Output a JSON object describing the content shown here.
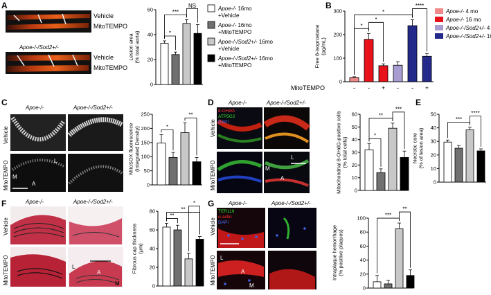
{
  "panels": [
    "A",
    "B",
    "C",
    "D",
    "E",
    "F",
    "G"
  ],
  "genotypes": {
    "apoe": "Apoe-/-",
    "apoe_sod2": "Apoe-/-/Sod2+/-"
  },
  "treatments": {
    "vehicle": "Vehicle",
    "mito": "MitoTEMPO"
  },
  "markers": {
    "M": "M",
    "L": "L",
    "A": "A",
    "d_stains": [
      "8-OHdG",
      "ATP5G2",
      "DAPI"
    ],
    "g_stains": [
      "TER119",
      "α-actin",
      "DAPI"
    ]
  },
  "colors": {
    "white": "#ffffff",
    "dark_gray": "#707070",
    "light_gray": "#c8c8c8",
    "black": "#000000",
    "b_apoe_4": "#f08a8a",
    "b_apoe_16": "#e8121b",
    "b_sod2_4": "#a89cd0",
    "b_sod2_16": "#242a8a"
  },
  "legend_a": [
    {
      "genotype": "Apoe-/-",
      "suffix": " 16mo",
      "treatment": "+Vehicle",
      "fill": "#ffffff"
    },
    {
      "genotype": "Apoe-/-",
      "suffix": " 16mo",
      "treatment": "+MitoTEMPO",
      "fill": "#707070"
    },
    {
      "genotype": "Apoe-/-/Sod2+/-",
      "suffix": " 16mo",
      "treatment": "+Vehicle",
      "fill": "#c8c8c8"
    },
    {
      "genotype": "Apoe-/-/Sod2+/-",
      "suffix": " 16mo",
      "treatment": "+MitoTEMPO",
      "fill": "#000000"
    }
  ],
  "legend_b": [
    {
      "genotype": "Apoe-/-",
      "age": " 4 mo",
      "fill": "#f08a8a"
    },
    {
      "genotype": "Apoe-/-",
      "age": " 16 mo",
      "fill": "#e8121b"
    },
    {
      "genotype": "Apoe-/-/Sod2+/-",
      "age": " 4 mo",
      "fill": "#a89cd0"
    },
    {
      "genotype": "Apoe-/-/Sod2+/-",
      "age": " 16 mo",
      "fill": "#242a8a"
    }
  ],
  "chart_data": [
    {
      "panel": "A",
      "type": "bar",
      "ylabel": "Lesion area (% total aorta)",
      "ylim": [
        0,
        60
      ],
      "yticks": [
        0,
        20,
        40,
        60
      ],
      "values": [
        33,
        24,
        49,
        41
      ],
      "errors": [
        2,
        2,
        3,
        7
      ],
      "significance": [
        {
          "pair": [
            0,
            1
          ],
          "label": "*"
        },
        {
          "pair": [
            0,
            2
          ],
          "label": "***"
        },
        {
          "pair": [
            2,
            3
          ],
          "label": "NS"
        }
      ]
    },
    {
      "panel": "B",
      "type": "bar",
      "ylabel": "Free 8-isoprostane (pg/mL)",
      "ylim": [
        0,
        300
      ],
      "yticks": [
        0,
        100,
        200,
        300
      ],
      "values": [
        18,
        180,
        68,
        70,
        238,
        108
      ],
      "errors": [
        3,
        25,
        8,
        15,
        25,
        12
      ],
      "xlabel": "MitoTEMPO",
      "xticks": [
        "-",
        "-",
        "+",
        "-",
        "-",
        "+"
      ],
      "significance": [
        {
          "pair": [
            0,
            1
          ],
          "label": "*"
        },
        {
          "pair": [
            1,
            2
          ],
          "label": "*"
        },
        {
          "pair": [
            0,
            4
          ],
          "label": "*"
        },
        {
          "pair": [
            4,
            5
          ],
          "label": "****"
        }
      ]
    },
    {
      "panel": "C",
      "type": "bar",
      "ylabel": "MitoSOX fluorescence (Integrated Density)",
      "ylim": [
        0,
        250
      ],
      "yticks": [
        0,
        50,
        100,
        150,
        200,
        250
      ],
      "values": [
        148,
        97,
        185,
        82
      ],
      "errors": [
        30,
        18,
        35,
        15
      ],
      "significance": [
        {
          "pair": [
            0,
            1
          ],
          "label": "*"
        },
        {
          "pair": [
            2,
            3
          ],
          "label": "**"
        }
      ]
    },
    {
      "panel": "D",
      "type": "bar",
      "ylabel": "Mitochondrial 8-OHdG-positive cells (% total cells)",
      "ylim": [
        0,
        60
      ],
      "yticks": [
        0,
        10,
        20,
        30,
        40,
        50,
        60
      ],
      "values": [
        32,
        14,
        49,
        26
      ],
      "errors": [
        5,
        3,
        4,
        5
      ],
      "significance": [
        {
          "pair": [
            0,
            1
          ],
          "label": "*"
        },
        {
          "pair": [
            0,
            2
          ],
          "label": "**"
        },
        {
          "pair": [
            2,
            3
          ],
          "label": "***"
        }
      ]
    },
    {
      "panel": "E",
      "type": "bar",
      "ylabel": "Necrotic core (% of lesion area)",
      "ylim": [
        0,
        50
      ],
      "yticks": [
        0,
        10,
        20,
        30,
        40,
        50
      ],
      "values": [
        29.5,
        25,
        38.5,
        23
      ],
      "errors": [
        1.5,
        2,
        2,
        1.5
      ],
      "significance": [
        {
          "pair": [
            0,
            2
          ],
          "label": "***"
        },
        {
          "pair": [
            2,
            3
          ],
          "label": "****"
        }
      ]
    },
    {
      "panel": "F",
      "type": "bar",
      "ylabel": "Fibrous cap thickness (μm)",
      "ylim": [
        0,
        80
      ],
      "yticks": [
        0,
        20,
        40,
        60,
        80
      ],
      "values": [
        63,
        60,
        29,
        50
      ],
      "errors": [
        4,
        5,
        6,
        3
      ],
      "significance": [
        {
          "pair": [
            0,
            1
          ],
          "label": "**"
        },
        {
          "pair": [
            0,
            3
          ],
          "label": "**"
        },
        {
          "pair": [
            2,
            3
          ],
          "label": "*"
        }
      ]
    },
    {
      "panel": "G",
      "type": "bar",
      "ylabel": "Intraplaque hemorrhage (% positive plaques)",
      "ylim": [
        0,
        100
      ],
      "yticks": [
        0,
        20,
        40,
        60,
        80,
        100
      ],
      "values": [
        9,
        6,
        85,
        18
      ],
      "errors": [
        9,
        5,
        8,
        8
      ],
      "significance": [
        {
          "pair": [
            0,
            2
          ],
          "label": "***"
        },
        {
          "pair": [
            2,
            3
          ],
          "label": "**"
        }
      ]
    }
  ]
}
